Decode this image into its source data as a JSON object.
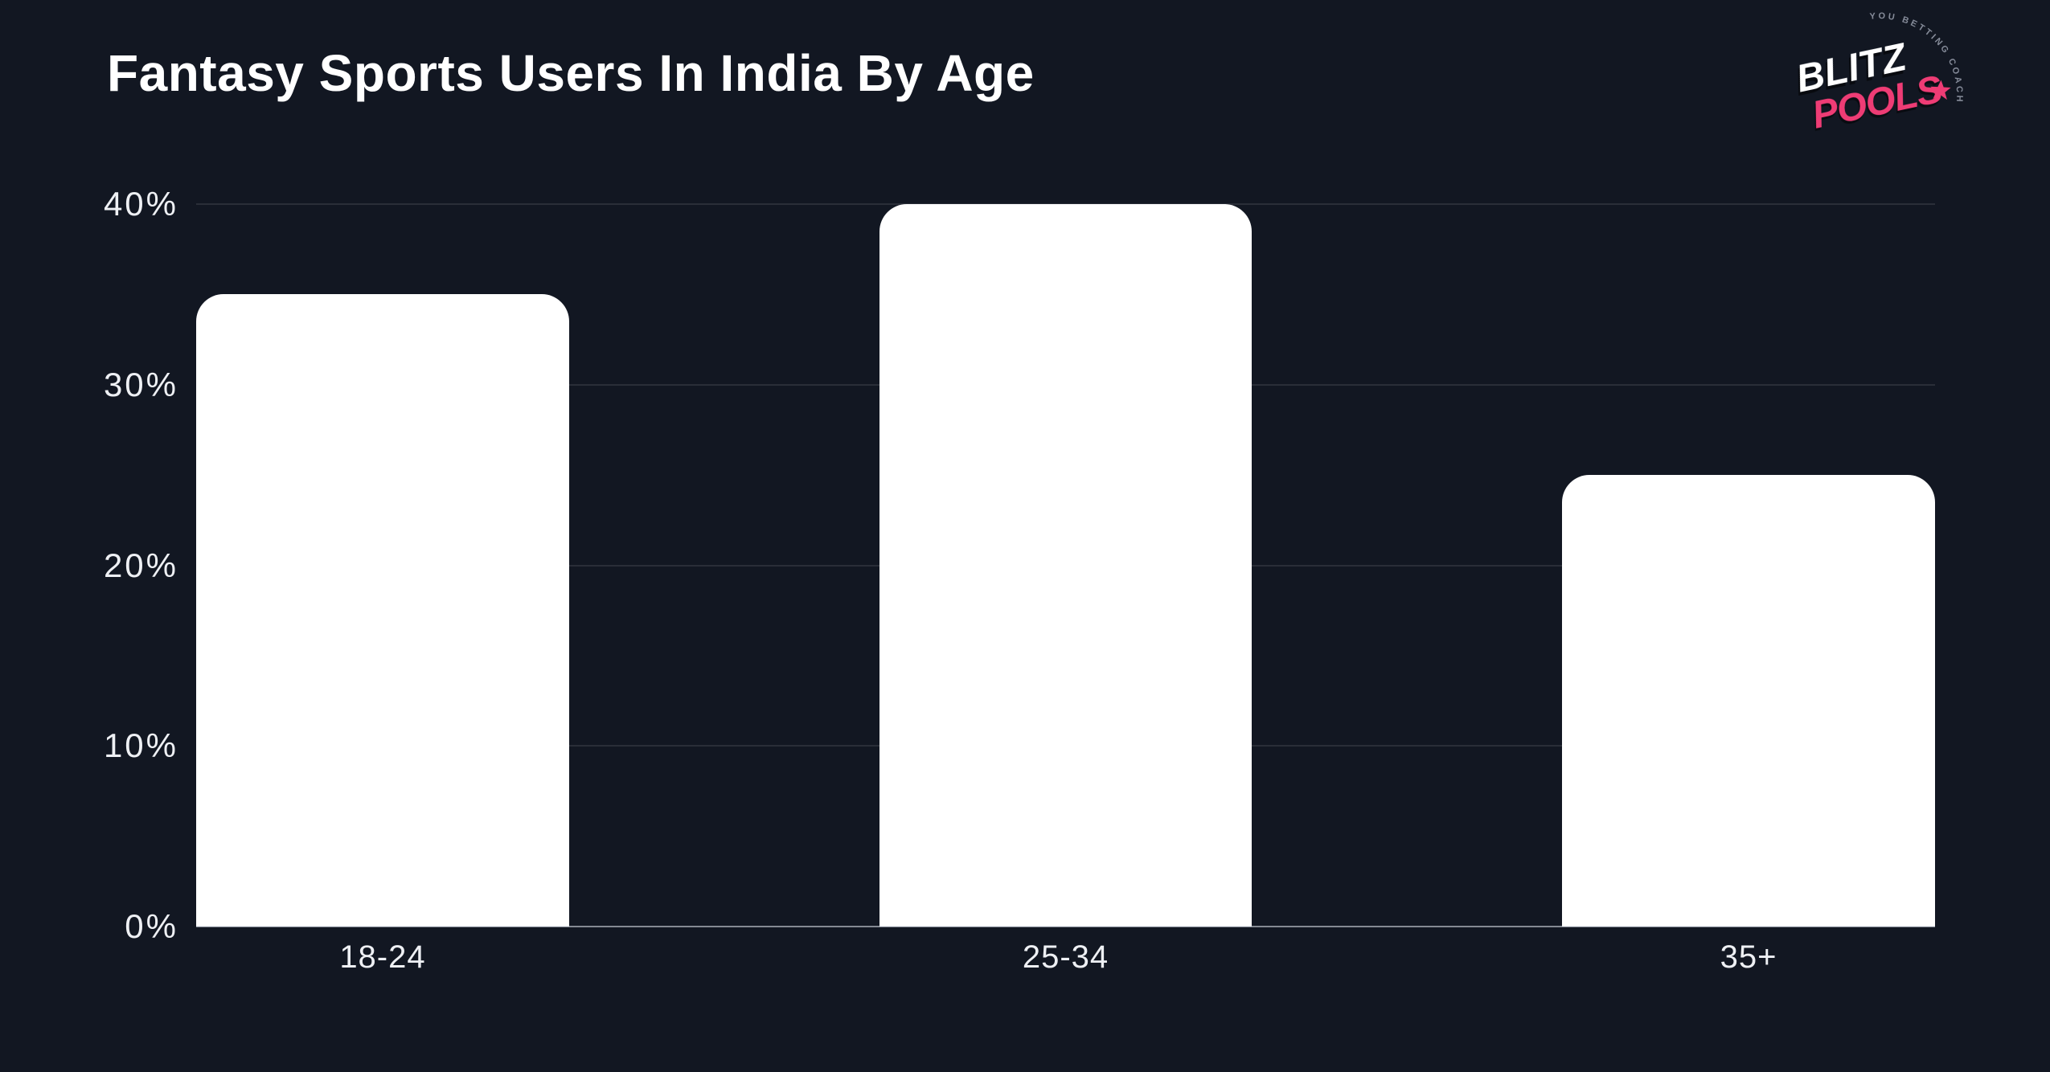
{
  "page": {
    "background": "#121722",
    "text_color": "#eef0f4"
  },
  "header": {
    "title": "Fantasy Sports Users In India By Age",
    "logo": {
      "brand_top": "BLITZ",
      "brand_bottom": "POOLS",
      "tagline": "YOU BETTING COACH",
      "brand_top_color": "#ffffff",
      "brand_bottom_color": "#ee3c75",
      "tagline_color": "#858b99",
      "star_color": "#ee3c75"
    }
  },
  "chart_data": {
    "type": "bar",
    "title": "Fantasy Sports Users In India By Age",
    "categories": [
      "18-24",
      "25-34",
      "35+"
    ],
    "values": [
      35,
      40,
      25
    ],
    "xlabel": "",
    "ylabel": "",
    "ylim": [
      0,
      40
    ],
    "yticks": [
      0,
      10,
      20,
      30,
      40
    ],
    "ytick_suffix": "%",
    "grid": "horizontal",
    "legend": "none",
    "bar_color": "#ffffff",
    "bar_corner_radius_px": 34,
    "background": "#121722"
  }
}
